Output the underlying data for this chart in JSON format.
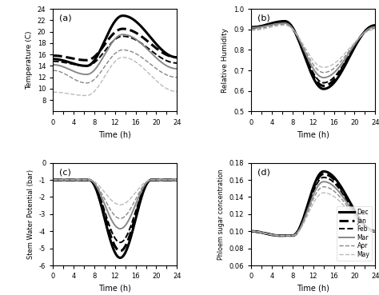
{
  "months": [
    "Dec",
    "Jan",
    "Feb",
    "Mar",
    "Apr",
    "May"
  ],
  "line_styles": [
    {
      "color": "#000000",
      "lw": 2.2,
      "ls": "-",
      "label": "Dec"
    },
    {
      "color": "#000000",
      "lw": 2.2,
      "ls": "--",
      "label": "Jan"
    },
    {
      "color": "#000000",
      "lw": 1.4,
      "ls": "--",
      "label": "Feb"
    },
    {
      "color": "#888888",
      "lw": 1.4,
      "ls": "-",
      "label": "Mar"
    },
    {
      "color": "#888888",
      "lw": 1.0,
      "ls": "--",
      "label": "Apr"
    },
    {
      "color": "#bbbbbb",
      "lw": 1.0,
      "ls": "--",
      "label": "May"
    }
  ],
  "temp_start": [
    15.2,
    15.8,
    14.8,
    14.2,
    13.2,
    9.4
  ],
  "temp_min": [
    14.0,
    15.0,
    14.0,
    12.5,
    11.0,
    8.8
  ],
  "temp_max": [
    22.8,
    20.5,
    19.2,
    19.5,
    16.8,
    15.5
  ],
  "temp_end": [
    15.5,
    15.5,
    14.5,
    13.5,
    12.0,
    9.5
  ],
  "temp_trough": 6.5,
  "temp_peak": 13.5,
  "temp_ylim": [
    6,
    24
  ],
  "temp_yticks": [
    8,
    10,
    12,
    14,
    16,
    18,
    20,
    22,
    24
  ],
  "rh_start": [
    0.91,
    0.91,
    0.91,
    0.908,
    0.9,
    0.895
  ],
  "rh_peak": [
    0.94,
    0.937,
    0.935,
    0.93,
    0.925,
    0.92
  ],
  "rh_min": [
    0.61,
    0.625,
    0.64,
    0.665,
    0.69,
    0.715
  ],
  "rh_end": [
    0.92,
    0.918,
    0.915,
    0.912,
    0.905,
    0.9
  ],
  "rh_trough": 6.5,
  "rh_mintime": 14.0,
  "rh_ylim": [
    0.5,
    1.0
  ],
  "rh_yticks": [
    0.5,
    0.6,
    0.7,
    0.8,
    0.9,
    1.0
  ],
  "swp_nightval": -1.0,
  "swp_daystart": 7.0,
  "swp_peak": 13.0,
  "swp_dayend": 19.0,
  "swp_min": [
    -5.55,
    -5.15,
    -4.65,
    -3.85,
    -3.25,
    -2.45
  ],
  "swp_ylim": [
    -6,
    0
  ],
  "swp_yticks": [
    -6,
    -5,
    -4,
    -3,
    -2,
    -1,
    0
  ],
  "psc_base": [
    0.1,
    0.1,
    0.1,
    0.1,
    0.1,
    0.1
  ],
  "psc_dip": [
    0.095,
    0.095,
    0.095,
    0.095,
    0.095,
    0.095
  ],
  "psc_max": [
    0.17,
    0.167,
    0.163,
    0.158,
    0.152,
    0.145
  ],
  "psc_end": [
    0.1,
    0.1,
    0.1,
    0.1,
    0.1,
    0.1
  ],
  "psc_diptime": 5.5,
  "psc_risetime": 8.0,
  "psc_peak": 14.0,
  "psc_ylim": [
    0.06,
    0.18
  ],
  "psc_yticks": [
    0.06,
    0.08,
    0.1,
    0.12,
    0.14,
    0.16,
    0.18
  ],
  "xlabel": "Time (h)",
  "xticks": [
    0,
    2,
    4,
    6,
    8,
    10,
    12,
    14,
    16,
    18,
    20,
    22,
    24
  ],
  "xlim": [
    0,
    24
  ]
}
